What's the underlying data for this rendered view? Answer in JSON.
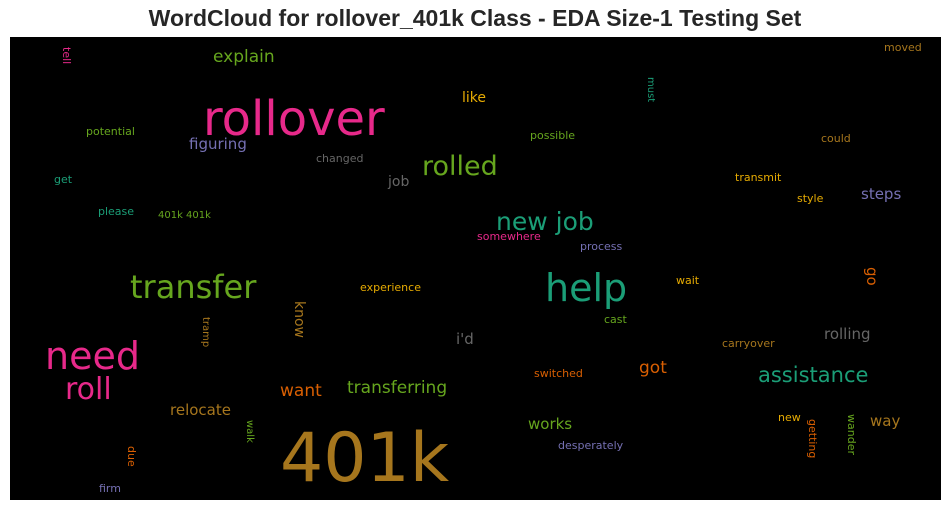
{
  "chart_data": {
    "type": "wordcloud",
    "title": "WordCloud for rollover_401k Class - EDA Size-1 Testing Set",
    "words": [
      {
        "text": "401k",
        "color": "#a6761d"
      },
      {
        "text": "rollover",
        "color": "#e7298a"
      },
      {
        "text": "help",
        "color": "#1b9e77"
      },
      {
        "text": "need",
        "color": "#e7298a"
      },
      {
        "text": "transfer",
        "color": "#66a61e"
      },
      {
        "text": "rolled",
        "color": "#66a61e"
      },
      {
        "text": "roll",
        "color": "#e7298a"
      },
      {
        "text": "new job",
        "color": "#1b9e77"
      },
      {
        "text": "assistance",
        "color": "#1b9e77"
      },
      {
        "text": "transferring",
        "color": "#66a61e"
      },
      {
        "text": "explain",
        "color": "#66a61e"
      },
      {
        "text": "figuring",
        "color": "#7570b3"
      },
      {
        "text": "want",
        "color": "#d95f02"
      },
      {
        "text": "relocate",
        "color": "#a6761d"
      },
      {
        "text": "works",
        "color": "#66a61e"
      },
      {
        "text": "rolling",
        "color": "#666666"
      },
      {
        "text": "got",
        "color": "#d95f02"
      },
      {
        "text": "way",
        "color": "#a6761d"
      },
      {
        "text": "steps",
        "color": "#7570b3"
      },
      {
        "text": "i'd",
        "color": "#666666"
      },
      {
        "text": "know",
        "color": "#a6761d"
      },
      {
        "text": "go",
        "color": "#d95f02"
      },
      {
        "text": "like",
        "color": "#e6ab02"
      },
      {
        "text": "job",
        "color": "#666666"
      },
      {
        "text": "potential",
        "color": "#66a61e"
      },
      {
        "text": "changed",
        "color": "#666666"
      },
      {
        "text": "possible",
        "color": "#66a61e"
      },
      {
        "text": "could",
        "color": "#a6761d"
      },
      {
        "text": "transmit",
        "color": "#e6ab02"
      },
      {
        "text": "style",
        "color": "#e6ab02"
      },
      {
        "text": "get",
        "color": "#1b9e77"
      },
      {
        "text": "please",
        "color": "#1b9e77"
      },
      {
        "text": "401k 401k",
        "color": "#66a61e"
      },
      {
        "text": "somewhere",
        "color": "#e7298a"
      },
      {
        "text": "process",
        "color": "#7570b3"
      },
      {
        "text": "experience",
        "color": "#e6ab02"
      },
      {
        "text": "wait",
        "color": "#e6ab02"
      },
      {
        "text": "cast",
        "color": "#66a61e"
      },
      {
        "text": "carryover",
        "color": "#a6761d"
      },
      {
        "text": "switched",
        "color": "#d95f02"
      },
      {
        "text": "new",
        "color": "#e6ab02"
      },
      {
        "text": "desperately",
        "color": "#7570b3"
      },
      {
        "text": "firm",
        "color": "#7570b3"
      },
      {
        "text": "moved",
        "color": "#a6761d"
      },
      {
        "text": "tell",
        "color": "#e7298a"
      },
      {
        "text": "must",
        "color": "#1b9e77"
      },
      {
        "text": "tramp",
        "color": "#a6761d"
      },
      {
        "text": "walk",
        "color": "#66a61e"
      },
      {
        "text": "due",
        "color": "#d95f02"
      },
      {
        "text": "getting",
        "color": "#d95f02"
      },
      {
        "text": "wander",
        "color": "#66a61e"
      }
    ]
  }
}
